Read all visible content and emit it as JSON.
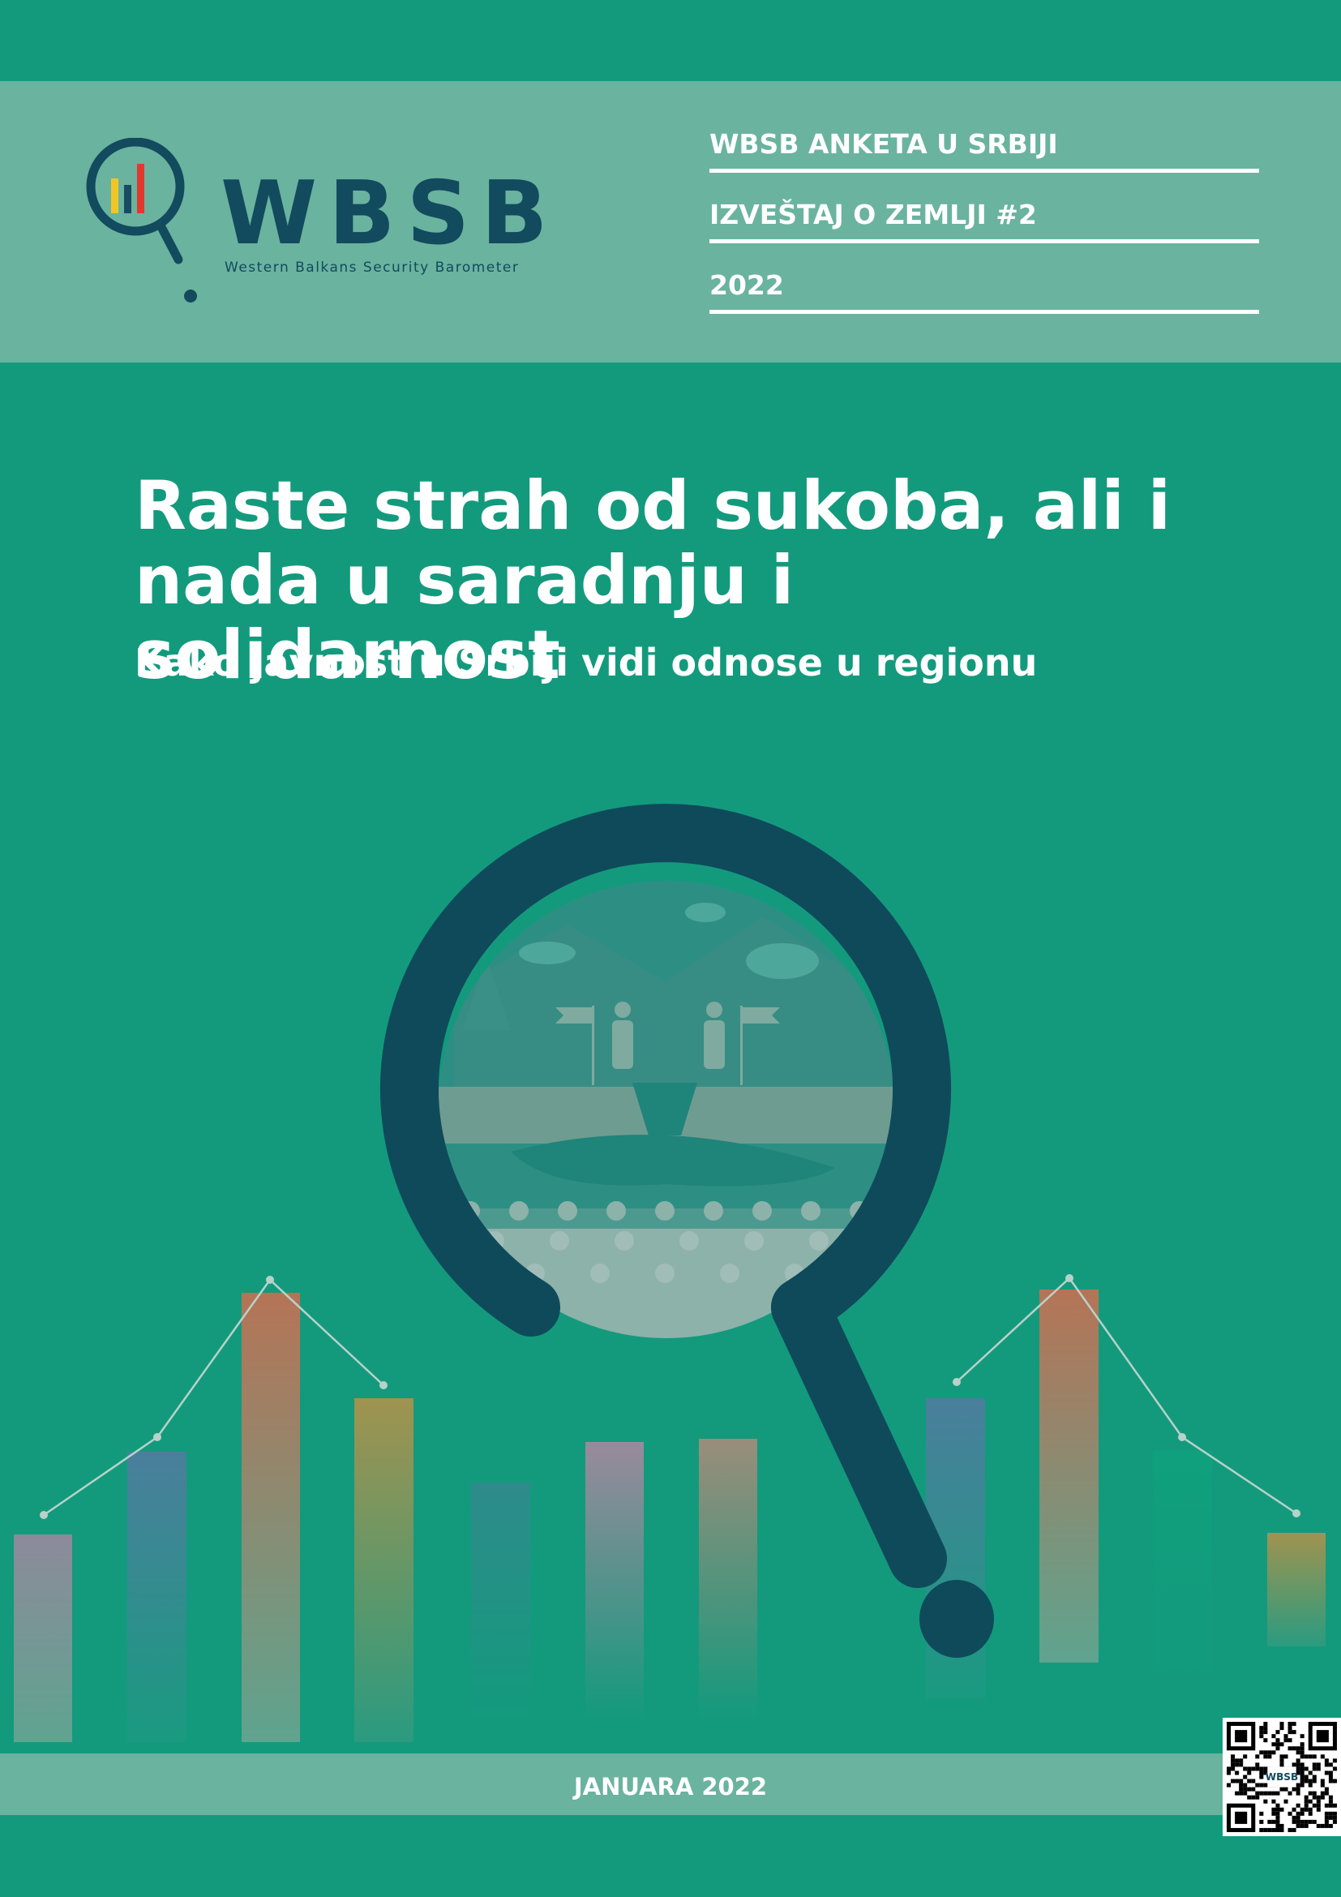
{
  "logo": {
    "wordmark": "WBSB",
    "tagline": "Western Balkans Security Barometer"
  },
  "header": {
    "lines": [
      "WBSB ANKETA U SRBIJI",
      "IZVEŠTAJ O ZEMLJI #2",
      "2022"
    ]
  },
  "title": {
    "line1": "Raste strah od sukoba, ali i",
    "line2": "nada u saradnju i solidarnost"
  },
  "subtitle": "Kako javnost u Srbiji vidi odnose u regionu",
  "footer": {
    "date": "JANUARA 2022",
    "qr_label": "WBSB"
  },
  "colors": {
    "background": "#139a7d",
    "band": "#6ab39f",
    "brand_dark": "#124a5e",
    "text": "#ffffff"
  }
}
